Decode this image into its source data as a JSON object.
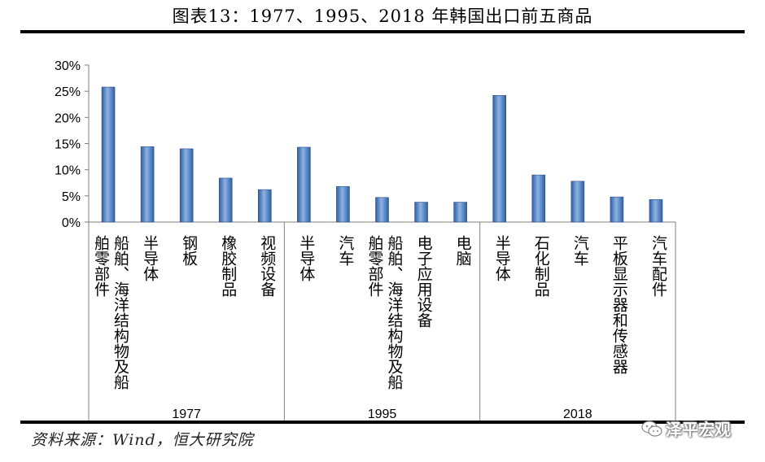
{
  "title": "图表13：1977、1995、2018 年韩国出口前五商品",
  "source": "资料来源：Wind，恒大研究院",
  "watermark": "泽平宏观",
  "colors": {
    "bar_light": "#8DB3E2",
    "bar_dark": "#2F5FA8",
    "axis": "#7F7F7F"
  },
  "chart_data": {
    "type": "bar",
    "title": "1977、1995、2018 年韩国出口前五商品",
    "ylim": [
      0,
      30
    ],
    "yticks": [
      "0%",
      "5%",
      "10%",
      "15%",
      "20%",
      "25%",
      "30%"
    ],
    "yticks_values": [
      0,
      5,
      10,
      15,
      20,
      25,
      30
    ],
    "groups": [
      "1977",
      "1995",
      "2018"
    ],
    "items": [
      {
        "group": "1977",
        "columns": [
          "船舶、海洋结构物及船",
          "舶零部件"
        ],
        "value": 25.8
      },
      {
        "group": "1977",
        "columns": [
          "半导体"
        ],
        "value": 14.4
      },
      {
        "group": "1977",
        "columns": [
          "钢板"
        ],
        "value": 14.0
      },
      {
        "group": "1977",
        "columns": [
          "橡胶制品"
        ],
        "value": 8.4
      },
      {
        "group": "1977",
        "columns": [
          "视频设备"
        ],
        "value": 6.2
      },
      {
        "group": "1995",
        "columns": [
          "半导体"
        ],
        "value": 14.3
      },
      {
        "group": "1995",
        "columns": [
          "汽车"
        ],
        "value": 6.8
      },
      {
        "group": "1995",
        "columns": [
          "船舶、海洋结构物及船",
          "舶零部件"
        ],
        "value": 4.7
      },
      {
        "group": "1995",
        "columns": [
          "电子应用设备"
        ],
        "value": 3.8
      },
      {
        "group": "1995",
        "columns": [
          "电脑"
        ],
        "value": 3.8
      },
      {
        "group": "2018",
        "columns": [
          "半导体"
        ],
        "value": 24.2
      },
      {
        "group": "2018",
        "columns": [
          "石化制品"
        ],
        "value": 9.0
      },
      {
        "group": "2018",
        "columns": [
          "汽车"
        ],
        "value": 7.8
      },
      {
        "group": "2018",
        "columns": [
          "平板显示器和传感器"
        ],
        "value": 4.8
      },
      {
        "group": "2018",
        "columns": [
          "汽车配件"
        ],
        "value": 4.3
      }
    ]
  }
}
